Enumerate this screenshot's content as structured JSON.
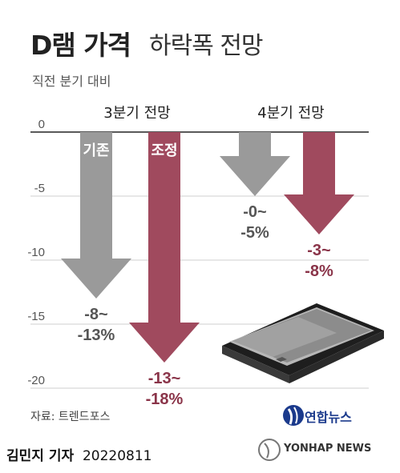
{
  "header": {
    "title_bold": "D램 가격",
    "title_light": "하락폭 전망",
    "subtitle": "직전 분기 대비"
  },
  "chart_data": {
    "type": "bar",
    "categories": [
      "3분기 전망",
      "4분기 전망"
    ],
    "series": [
      {
        "name": "기존",
        "ranges": [
          [
            -8,
            -13
          ],
          [
            0,
            -5
          ]
        ],
        "labels": [
          "-8~\n-13%",
          "-0~\n-5%"
        ],
        "color": "#9a9a9a"
      },
      {
        "name": "조정",
        "ranges": [
          [
            -13,
            -18
          ],
          [
            -3,
            -8
          ]
        ],
        "labels": [
          "-13~\n-18%",
          "-3~\n-8%"
        ],
        "color": "#a04a5e"
      }
    ],
    "yticks": [
      "0",
      "-5",
      "-10",
      "-15",
      "-20"
    ],
    "ylim": [
      -20,
      0
    ],
    "grid": true
  },
  "footer": {
    "source": "자료: 트렌드포스",
    "author_name": "김민지 기자",
    "date": "20220811",
    "logo_text": "연합뉴스",
    "brand": "YONHAP NEWS"
  }
}
